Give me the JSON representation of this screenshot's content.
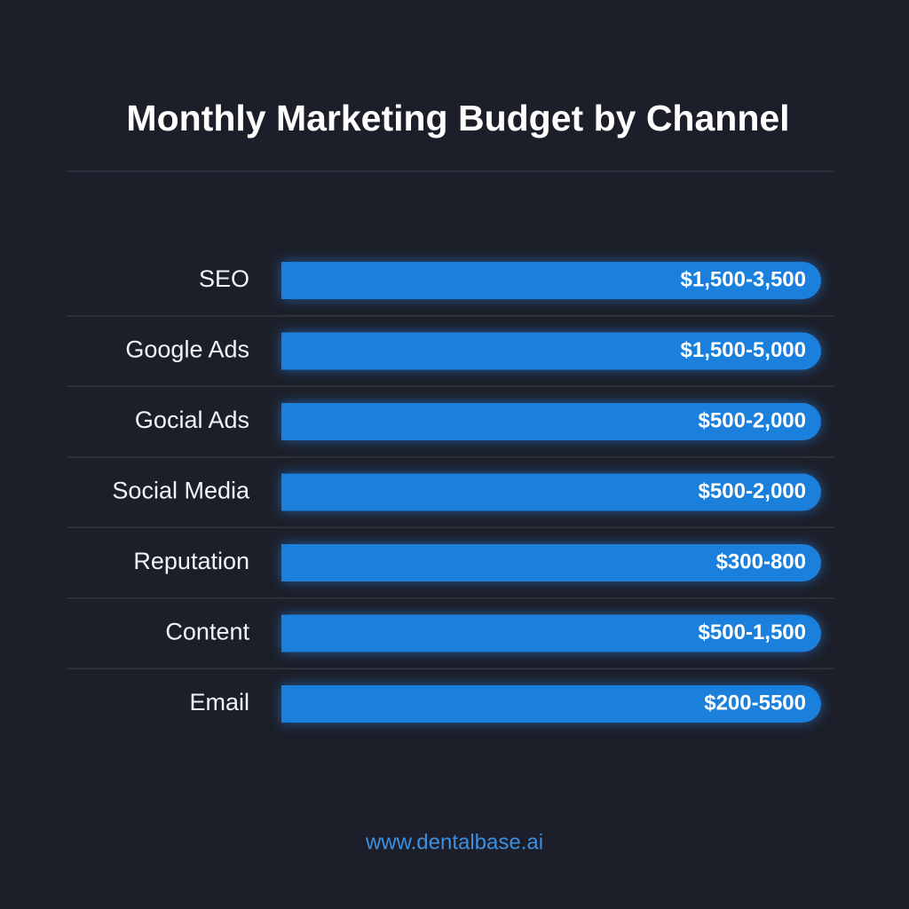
{
  "title": "Monthly Marketing Budget by Channel",
  "rows": [
    {
      "label": "SEO",
      "range": "$1,500-3,500"
    },
    {
      "label": "Google Ads",
      "range": "$1,500-5,000"
    },
    {
      "label": "Gocial Ads",
      "range": "$500-2,000"
    },
    {
      "label": "Social Media",
      "range": "$500-2,000"
    },
    {
      "label": "Reputation",
      "range": "$300-800"
    },
    {
      "label": "Content",
      "range": "$500-1,500"
    },
    {
      "label": "Email",
      "range": "$200-5500"
    }
  ],
  "footer": "www.dentalbase.ai"
}
